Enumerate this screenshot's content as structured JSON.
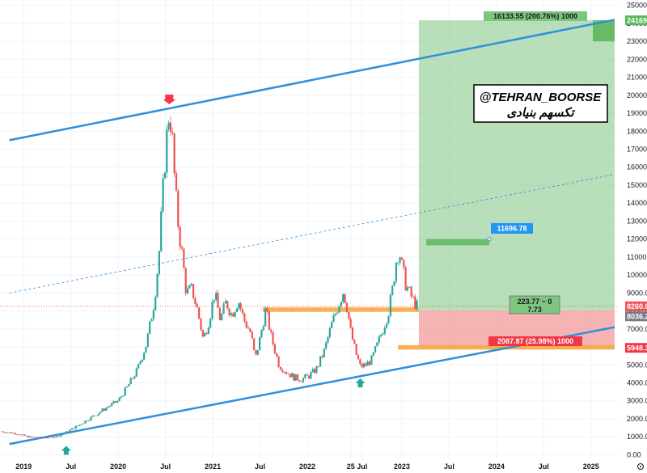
{
  "chart_data": {
    "type": "candlestick",
    "title": "",
    "xlabel": "",
    "ylabel": "",
    "ylim": [
      -200,
      25400
    ],
    "y_ticks": [
      "25000.00",
      "24000.00",
      "23000.00",
      "22000.00",
      "21000.00",
      "20000.00",
      "19000.00",
      "18000.00",
      "17000.00",
      "16000.00",
      "15000.00",
      "14000.00",
      "13000.00",
      "12000.00",
      "11000.00",
      "10000.00",
      "9000.00",
      "8000.00",
      "7000.00",
      "6000.00",
      "5000.00",
      "4000.00",
      "3000.00",
      "2000.00",
      "1000.00",
      "0.00"
    ],
    "x_ticks": [
      "2019",
      "Jul",
      "2020",
      "Jul",
      "2021",
      "Jul",
      "2022",
      "25",
      "Jul",
      "2023",
      "Jul",
      "2024",
      "Jul",
      "2025"
    ],
    "x_tick_dates": [
      2019.0,
      2019.5,
      2020.0,
      2020.5,
      2021.0,
      2021.5,
      2022.0,
      2022.46,
      2022.58,
      2023.0,
      2023.5,
      2024.0,
      2024.5,
      2025.0
    ],
    "grid": true,
    "price_path": [
      [
        2018.75,
        1300
      ],
      [
        2018.9,
        1200
      ],
      [
        2019.05,
        1000
      ],
      [
        2019.2,
        950
      ],
      [
        2019.35,
        1000
      ],
      [
        2019.45,
        1250
      ],
      [
        2019.6,
        1700
      ],
      [
        2019.75,
        2200
      ],
      [
        2019.9,
        2700
      ],
      [
        2020.0,
        3000
      ],
      [
        2020.1,
        3800
      ],
      [
        2020.2,
        4700
      ],
      [
        2020.3,
        6200
      ],
      [
        2020.38,
        8500
      ],
      [
        2020.43,
        11000
      ],
      [
        2020.47,
        14500
      ],
      [
        2020.51,
        17500
      ],
      [
        2020.54,
        19200
      ],
      [
        2020.57,
        17800
      ],
      [
        2020.6,
        15000
      ],
      [
        2020.64,
        12500
      ],
      [
        2020.68,
        11000
      ],
      [
        2020.72,
        9000
      ],
      [
        2020.78,
        9200
      ],
      [
        2020.84,
        8000
      ],
      [
        2020.9,
        6400
      ],
      [
        2020.96,
        7500
      ],
      [
        2021.02,
        9000
      ],
      [
        2021.08,
        7500
      ],
      [
        2021.14,
        8500
      ],
      [
        2021.2,
        7800
      ],
      [
        2021.27,
        8600
      ],
      [
        2021.33,
        7500
      ],
      [
        2021.4,
        6800
      ],
      [
        2021.45,
        5300
      ],
      [
        2021.5,
        6500
      ],
      [
        2021.56,
        8100
      ],
      [
        2021.62,
        6500
      ],
      [
        2021.7,
        5000
      ],
      [
        2021.78,
        4600
      ],
      [
        2021.86,
        4300
      ],
      [
        2021.94,
        4200
      ],
      [
        2022.02,
        4400
      ],
      [
        2022.1,
        4800
      ],
      [
        2022.18,
        5800
      ],
      [
        2022.26,
        7300
      ],
      [
        2022.32,
        8200
      ],
      [
        2022.38,
        9100
      ],
      [
        2022.42,
        8200
      ],
      [
        2022.46,
        6800
      ],
      [
        2022.51,
        5700
      ],
      [
        2022.56,
        4900
      ],
      [
        2022.62,
        5000
      ],
      [
        2022.68,
        5300
      ],
      [
        2022.74,
        6100
      ],
      [
        2022.8,
        7000
      ],
      [
        2022.86,
        8000
      ],
      [
        2022.9,
        9200
      ],
      [
        2022.94,
        10800
      ],
      [
        2022.97,
        11400
      ],
      [
        2023.0,
        10500
      ],
      [
        2023.04,
        9500
      ],
      [
        2023.08,
        9000
      ],
      [
        2023.12,
        8600
      ],
      [
        2023.16,
        8260
      ]
    ],
    "price_labels": {
      "upper_target": "24169",
      "current": "8260.0",
      "support": "8036.2",
      "stop": "5948.3"
    },
    "annotations": {
      "long_position_profit": "16133.55 (200.76%) 1000",
      "long_position_loss": "2087.87 (25.98%) 1000",
      "ratio_line1": "223.77 ~ 0",
      "ratio_line2": "7.73",
      "target_label": "11696.78",
      "watermark_line1": "@TEHRAN_BOORSE",
      "watermark_line2": "تکسهم بنیادی"
    },
    "channel": {
      "upper": [
        [
          2018.85,
          17500
        ],
        [
          2025.25,
          24200
        ]
      ],
      "lower": [
        [
          2018.85,
          600
        ],
        [
          2025.25,
          7100
        ]
      ],
      "mid_dashed": [
        [
          2018.85,
          9000
        ],
        [
          2025.25,
          15600
        ]
      ]
    },
    "levels": {
      "resistance_zone": [
        8200,
        7950
      ],
      "support_zone": [
        6100,
        5850
      ],
      "target_zone": [
        12000,
        11650
      ]
    },
    "position": {
      "x_start": 2023.18,
      "x_end": 2025.25,
      "entry": 8036,
      "target": 24169,
      "stop": 5948
    },
    "markers": {
      "arrow_down": [
        2020.54,
        19500
      ],
      "arrow_up_1": [
        2019.45,
        500
      ],
      "arrow_up_2": [
        2022.56,
        4250
      ]
    },
    "colors": {
      "up": "#26a69a",
      "down": "#ef5350",
      "channel": "#2f8fdd",
      "zone": "#f7a941",
      "profit": "#7ec57f",
      "loss": "#ef8a8a",
      "target_bar": "#5cb85c",
      "label_blue": "#2196f3",
      "label_gray": "#787b86",
      "label_red": "#f23645"
    }
  }
}
